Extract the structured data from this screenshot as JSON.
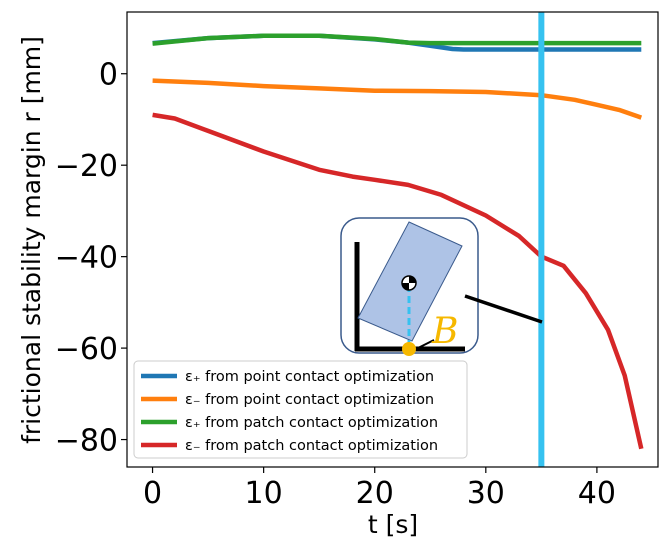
{
  "chart_data": {
    "type": "line",
    "xlabel": "t [s]",
    "ylabel": "frictional stability margin r [mm]",
    "xlim": [
      -2.3,
      45.5
    ],
    "ylim": [
      -86,
      13.5
    ],
    "xticks": [
      0,
      10,
      20,
      30,
      40
    ],
    "yticks": [
      0,
      -20,
      -40,
      -60,
      -80
    ],
    "xtick_labels": [
      "0",
      "10",
      "20",
      "30",
      "40"
    ],
    "ytick_labels": [
      "0",
      "−20",
      "−40",
      "−60",
      "−80"
    ],
    "grid": false,
    "legend_position": "lower-left",
    "series": [
      {
        "name": "ε₊ from point contact optimization",
        "color": "#1f77b4",
        "x": [
          0,
          5,
          10,
          15,
          20,
          23,
          25,
          27,
          28,
          30,
          35,
          40,
          44
        ],
        "y": [
          6.7,
          7.8,
          8.3,
          8.3,
          7.5,
          6.8,
          6.1,
          5.4,
          5.3,
          5.3,
          5.3,
          5.3,
          5.3
        ]
      },
      {
        "name": "ε₋ from point contact optimization",
        "color": "#ff7f0e",
        "x": [
          0,
          5,
          10,
          15,
          20,
          25,
          30,
          35,
          38,
          40,
          42,
          44
        ],
        "y": [
          -1.5,
          -2.0,
          -2.7,
          -3.2,
          -3.7,
          -3.8,
          -4.0,
          -4.7,
          -5.7,
          -6.8,
          -7.9,
          -9.6
        ]
      },
      {
        "name": "ε₊ from patch contact optimization",
        "color": "#2ca02c",
        "x": [
          0,
          5,
          10,
          15,
          20,
          23,
          25,
          30,
          35,
          40,
          44
        ],
        "y": [
          6.6,
          7.8,
          8.3,
          8.3,
          7.6,
          6.8,
          6.7,
          6.7,
          6.7,
          6.7,
          6.7
        ]
      },
      {
        "name": "ε₋ from patch contact optimization",
        "color": "#d62728",
        "x": [
          0,
          2,
          5,
          10,
          15,
          18,
          20,
          23,
          26,
          30,
          33,
          35,
          37,
          39,
          41,
          42.5,
          44
        ],
        "y": [
          -9,
          -9.8,
          -12.5,
          -17,
          -21,
          -22.5,
          -23.2,
          -24.3,
          -26.5,
          -31,
          -35.5,
          -40,
          -42,
          -48,
          -56,
          -66,
          -82
        ]
      }
    ],
    "annotations": [
      {
        "type": "vertical-line",
        "x": 35,
        "color": "#36c2f0"
      },
      {
        "type": "inset-sketch",
        "label": "B",
        "label_color": "#f6b800"
      }
    ]
  }
}
